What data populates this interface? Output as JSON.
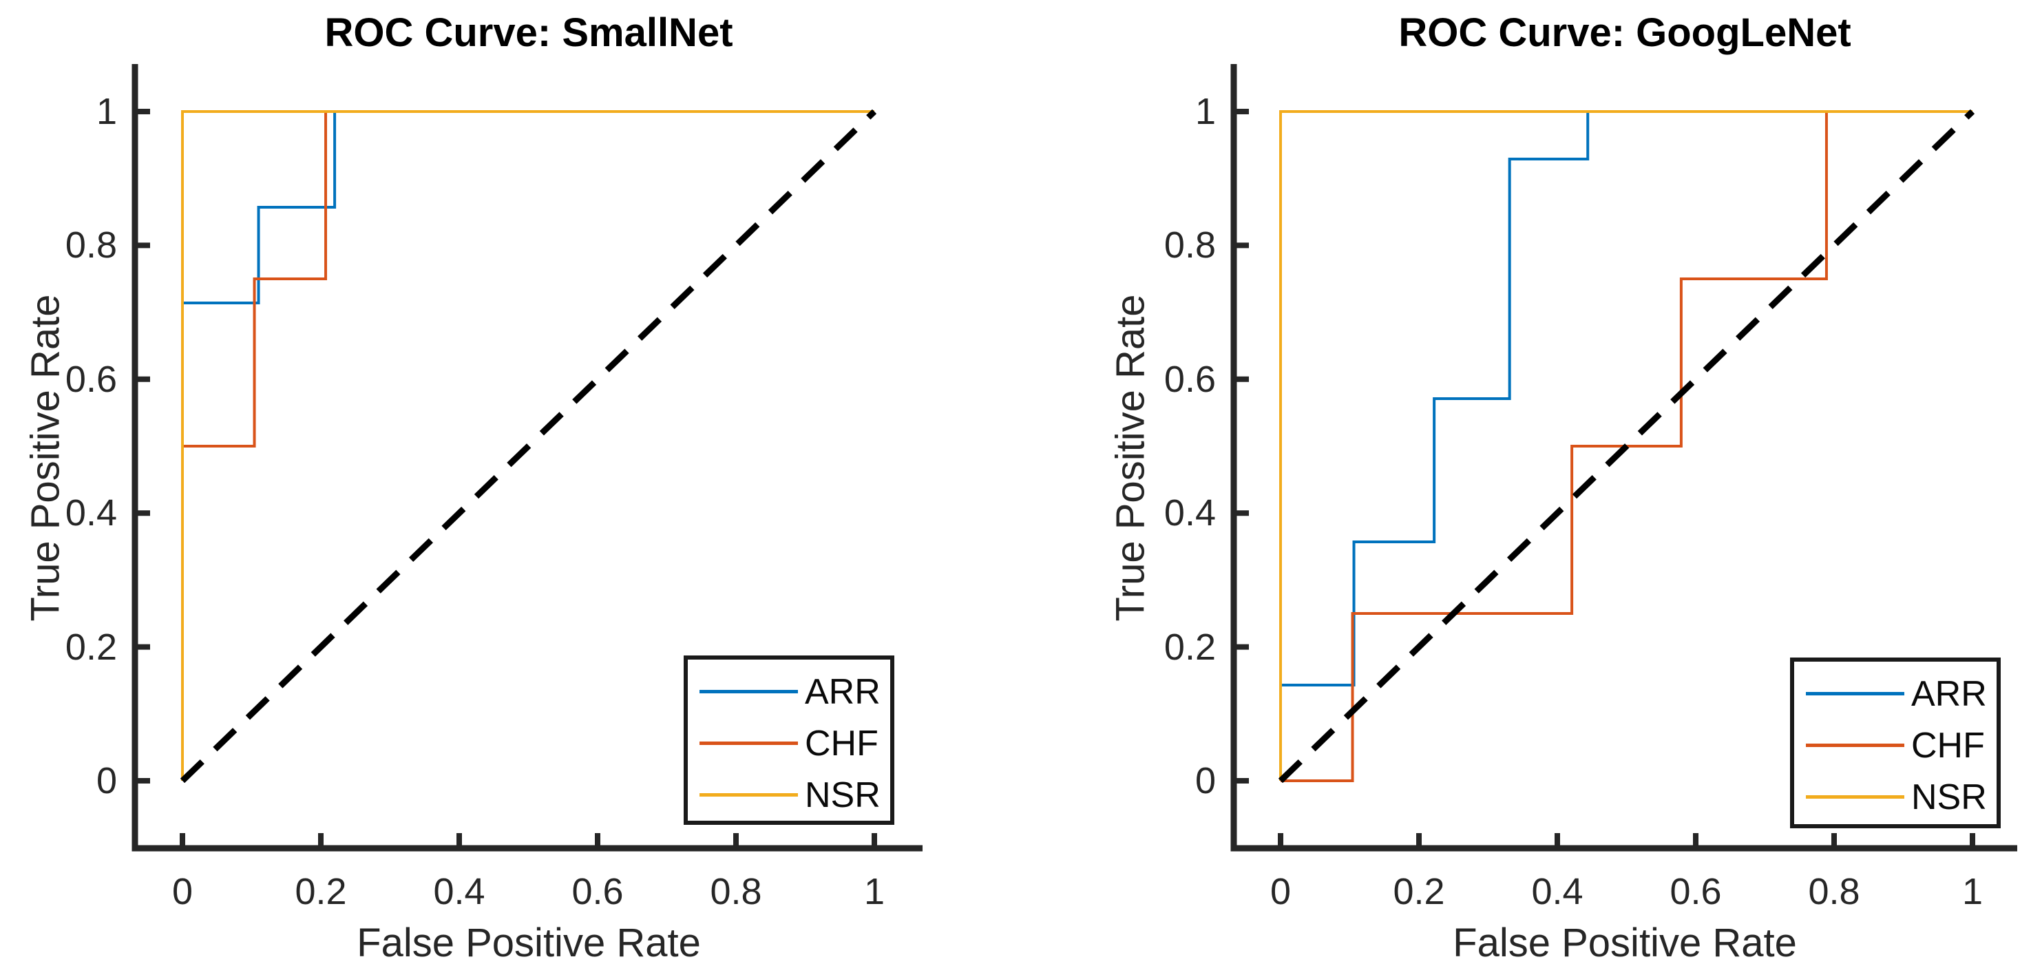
{
  "figure": {
    "background": "#ffffff",
    "axis_color": "#262626",
    "title_color": "#000000",
    "legend_border_color": "#1a1a1a"
  },
  "chart_data": [
    {
      "type": "line",
      "subtype": "roc-step-curves",
      "title": "ROC Curve: SmallNet",
      "xlabel": "False Positive Rate",
      "ylabel": "True Positive Rate",
      "xlim": [
        0,
        1
      ],
      "ylim": [
        0,
        1
      ],
      "grid": false,
      "legend_position": "southeast",
      "x_ticks": [
        0,
        0.2,
        0.4,
        0.6,
        0.8,
        1
      ],
      "x_tick_labels": [
        "0",
        "0.2",
        "0.4",
        "0.6",
        "0.8",
        "1"
      ],
      "y_ticks": [
        0,
        0.2,
        0.4,
        0.6,
        0.8,
        1
      ],
      "y_tick_labels": [
        "0",
        "0.2",
        "0.4",
        "0.6",
        "0.8",
        "1"
      ],
      "series": [
        {
          "name": "ARR",
          "color": "#0072BD",
          "points": [
            [
              0,
              0.714
            ],
            [
              0.11,
              0.714
            ],
            [
              0.11,
              0.857
            ],
            [
              0.22,
              0.857
            ],
            [
              0.22,
              1
            ],
            [
              1,
              1
            ]
          ]
        },
        {
          "name": "CHF",
          "color": "#D95319",
          "points": [
            [
              0,
              0.5
            ],
            [
              0.104,
              0.5
            ],
            [
              0.104,
              0.75
            ],
            [
              0.207,
              0.75
            ],
            [
              0.207,
              1
            ],
            [
              1,
              1
            ]
          ]
        },
        {
          "name": "NSR",
          "color": "#F2AC1D",
          "points": [
            [
              0,
              0
            ],
            [
              0,
              1
            ],
            [
              1,
              1
            ]
          ]
        }
      ],
      "reference_line": {
        "style": "dashed",
        "color": "#000000",
        "points": [
          [
            0,
            0
          ],
          [
            1,
            1
          ]
        ]
      }
    },
    {
      "type": "line",
      "subtype": "roc-step-curves",
      "title": "ROC Curve: GoogLeNet",
      "xlabel": "False Positive Rate",
      "ylabel": "True Positive Rate",
      "xlim": [
        0,
        1
      ],
      "ylim": [
        0,
        1
      ],
      "grid": false,
      "legend_position": "southeast",
      "x_ticks": [
        0,
        0.2,
        0.4,
        0.6,
        0.8,
        1
      ],
      "x_tick_labels": [
        "0",
        "0.2",
        "0.4",
        "0.6",
        "0.8",
        "1"
      ],
      "y_ticks": [
        0,
        0.2,
        0.4,
        0.6,
        0.8,
        1
      ],
      "y_tick_labels": [
        "0",
        "0.2",
        "0.4",
        "0.6",
        "0.8",
        "1"
      ],
      "series": [
        {
          "name": "ARR",
          "color": "#0072BD",
          "points": [
            [
              0,
              0.143
            ],
            [
              0.106,
              0.143
            ],
            [
              0.106,
              0.357
            ],
            [
              0.222,
              0.357
            ],
            [
              0.222,
              0.571
            ],
            [
              0.331,
              0.571
            ],
            [
              0.331,
              0.929
            ],
            [
              0.444,
              0.929
            ],
            [
              0.444,
              1
            ],
            [
              1,
              1
            ]
          ]
        },
        {
          "name": "CHF",
          "color": "#D95319",
          "points": [
            [
              0,
              0
            ],
            [
              0.104,
              0
            ],
            [
              0.104,
              0.25
            ],
            [
              0.421,
              0.25
            ],
            [
              0.421,
              0.5
            ],
            [
              0.579,
              0.5
            ],
            [
              0.579,
              0.75
            ],
            [
              0.789,
              0.75
            ],
            [
              0.789,
              1
            ],
            [
              1,
              1
            ]
          ]
        },
        {
          "name": "NSR",
          "color": "#F2AC1D",
          "points": [
            [
              0,
              0
            ],
            [
              0,
              1
            ],
            [
              1,
              1
            ]
          ]
        }
      ],
      "reference_line": {
        "style": "dashed",
        "color": "#000000",
        "points": [
          [
            0,
            0
          ],
          [
            1,
            1
          ]
        ]
      }
    }
  ]
}
